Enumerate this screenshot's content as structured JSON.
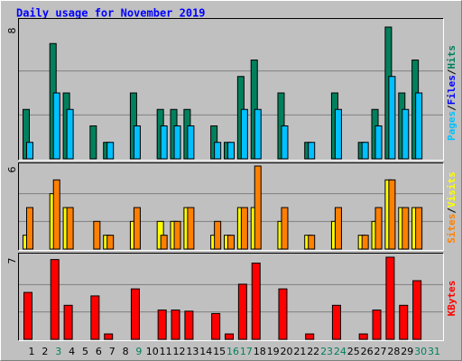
{
  "chart_data": [
    {
      "type": "bar",
      "title": "Daily usage for November 2019",
      "ylim": [
        0,
        8
      ],
      "yticks": [
        8
      ],
      "legend_separator": "/",
      "annotation": {
        "text": "Files",
        "color": "#0000FF"
      },
      "series": [
        {
          "name": "Hits",
          "color": "#00805C",
          "values": [
            3,
            0,
            7,
            4,
            0,
            2,
            1,
            0,
            4,
            0,
            3,
            3,
            3,
            0,
            2,
            1,
            5,
            6,
            0,
            4,
            0,
            1,
            0,
            4,
            0,
            1,
            3,
            8,
            4,
            6,
            0
          ]
        },
        {
          "name": "Pages",
          "color": "#00C0FF",
          "values": [
            1,
            0,
            4,
            3,
            0,
            0,
            1,
            0,
            2,
            0,
            2,
            2,
            2,
            0,
            1,
            1,
            3,
            3,
            0,
            2,
            0,
            1,
            0,
            3,
            0,
            1,
            2,
            5,
            3,
            4,
            0
          ]
        }
      ]
    },
    {
      "type": "bar",
      "ylim": [
        0,
        6
      ],
      "yticks": [
        6
      ],
      "legend_separator": "/",
      "series": [
        {
          "name": "Visits",
          "color": "#FFFF00",
          "values": [
            1,
            0,
            4,
            3,
            0,
            0,
            1,
            0,
            2,
            0,
            2,
            2,
            3,
            0,
            1,
            1,
            3,
            3,
            0,
            2,
            0,
            1,
            0,
            2,
            0,
            1,
            2,
            5,
            3,
            3,
            0
          ]
        },
        {
          "name": "Sites",
          "color": "#FF8000",
          "values": [
            3,
            0,
            5,
            3,
            0,
            2,
            1,
            0,
            3,
            0,
            1,
            2,
            3,
            0,
            2,
            1,
            3,
            6,
            0,
            3,
            0,
            1,
            0,
            3,
            0,
            1,
            3,
            5,
            3,
            3,
            0
          ]
        }
      ]
    },
    {
      "type": "bar",
      "ylim": [
        0,
        7
      ],
      "yticks": [
        7
      ],
      "categories": [
        "1",
        "2",
        "3",
        "4",
        "5",
        "6",
        "7",
        "8",
        "9",
        "10",
        "11",
        "12",
        "13",
        "14",
        "15",
        "16",
        "17",
        "18",
        "19",
        "20",
        "21",
        "22",
        "23",
        "24",
        "25",
        "26",
        "27",
        "28",
        "29",
        "30",
        "31"
      ],
      "category_colors": [
        "#000000",
        "#000000",
        "#00805C",
        "#000000",
        "#000000",
        "#000000",
        "#000000",
        "#000000",
        "#00805C",
        "#000000",
        "#000000",
        "#000000",
        "#000000",
        "#000000",
        "#000000",
        "#00805C",
        "#00805C",
        "#000000",
        "#000000",
        "#000000",
        "#000000",
        "#000000",
        "#00805C",
        "#00805C",
        "#000000",
        "#000000",
        "#000000",
        "#000000",
        "#000000",
        "#00805C",
        "#00805C"
      ],
      "series": [
        {
          "name": "KBytes",
          "color": "#FF0000",
          "values": [
            4,
            0,
            6.8,
            2.9,
            0,
            3.7,
            0.46,
            0,
            4.3,
            0,
            2.5,
            2.5,
            2.4,
            0,
            2.2,
            0.46,
            4.7,
            6.5,
            0,
            4.3,
            0,
            0.46,
            0,
            2.9,
            0,
            0.46,
            2.5,
            7,
            2.9,
            5,
            0
          ]
        }
      ]
    }
  ]
}
